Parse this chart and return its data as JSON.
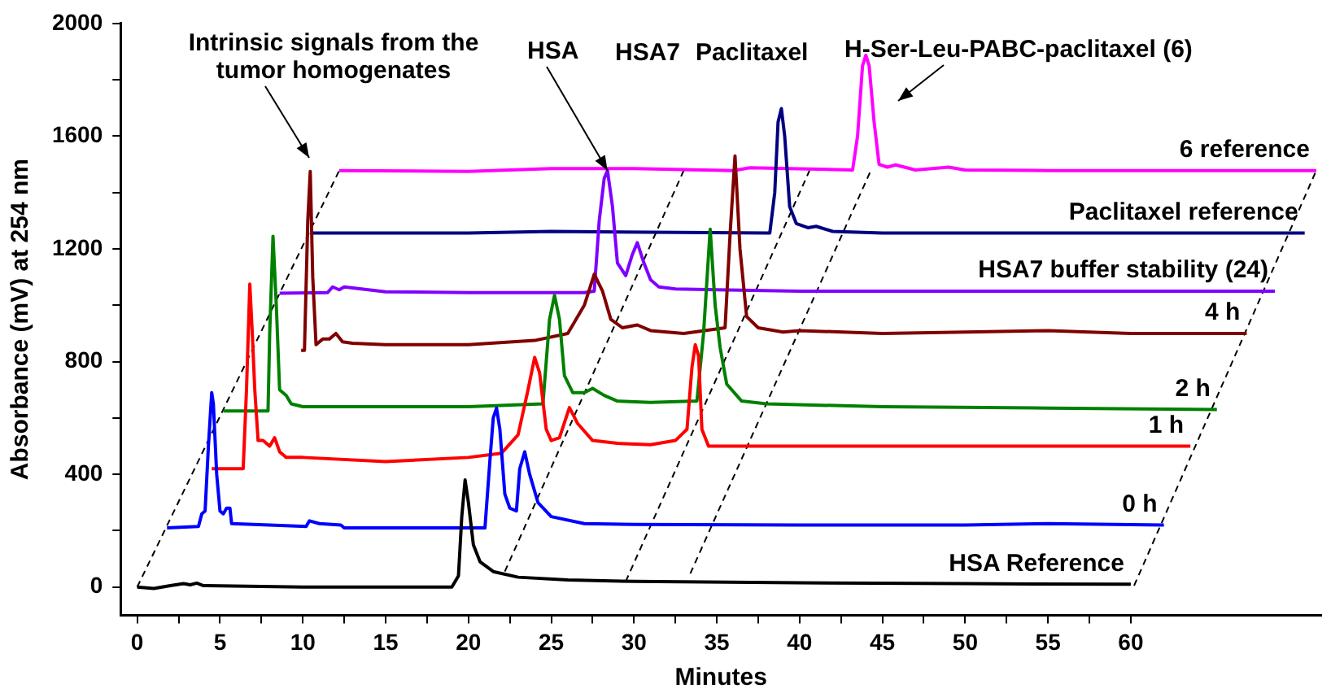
{
  "chart_data": {
    "type": "line",
    "xlabel": "Minutes",
    "ylabel": "Absorbance (mV) at 254 nm",
    "xlim": [
      -1,
      71.5
    ],
    "ylim": [
      -100,
      2000
    ],
    "xticks": [
      0,
      {
        "value": 2.5,
        "label": null
      },
      5,
      {
        "value": 7.5,
        "label": null
      },
      10,
      {
        "value": 12.5,
        "label": null
      },
      15,
      {
        "value": 17.5,
        "label": null
      },
      20,
      {
        "value": 22.5,
        "label": null
      },
      25,
      {
        "value": 27.5,
        "label": null
      },
      30,
      {
        "value": 32.5,
        "label": null
      },
      35,
      {
        "value": 37.5,
        "label": null
      },
      40,
      {
        "value": 42.5,
        "label": null
      },
      45,
      {
        "value": 47.5,
        "label": null
      },
      50,
      {
        "value": 52.5,
        "label": null
      },
      55,
      {
        "value": 57.5,
        "label": null
      },
      60
    ],
    "yticks": [
      0,
      {
        "value": 200,
        "label": null
      },
      400,
      {
        "value": 600,
        "label": null
      },
      800,
      {
        "value": 1000,
        "label": null
      },
      1200,
      {
        "value": 1400,
        "label": null
      },
      1600,
      {
        "value": 1800,
        "label": null
      },
      2000
    ],
    "grid": false,
    "legend": false,
    "marker": "none",
    "series": [
      {
        "name": "HSA Reference",
        "color": "#000000",
        "x": [
          0,
          1,
          2,
          2.8,
          3.2,
          3.6,
          4,
          10,
          19,
          19.4,
          19.6,
          19.8,
          20.0,
          20.3,
          20.7,
          21.5,
          23,
          26,
          30,
          40,
          50,
          60
        ],
        "values": [
          0,
          -5,
          5,
          12,
          8,
          14,
          5,
          0,
          0,
          40,
          250,
          380,
          300,
          150,
          90,
          55,
          35,
          25,
          20,
          15,
          12,
          10
        ]
      },
      {
        "name": "0 h",
        "color": "#0000ff",
        "x": [
          1.8,
          3.7,
          3.9,
          4.1,
          4.3,
          4.5,
          4.6,
          4.8,
          5.0,
          5.2,
          5.4,
          5.6,
          5.7,
          8,
          10.2,
          10.4,
          11,
          12.3,
          12.5,
          21.0,
          21.3,
          21.5,
          21.7,
          21.9,
          22.2,
          22.5,
          22.9,
          23.1,
          23.4,
          23.7,
          24.2,
          25,
          27,
          30,
          40,
          50,
          55,
          62
        ],
        "values": [
          210,
          215,
          260,
          270,
          500,
          690,
          650,
          400,
          270,
          260,
          280,
          280,
          225,
          220,
          215,
          235,
          225,
          220,
          210,
          210,
          450,
          600,
          635,
          560,
          330,
          280,
          270,
          420,
          480,
          400,
          300,
          250,
          225,
          222,
          220,
          220,
          225,
          220
        ]
      },
      {
        "name": "1 h",
        "color": "#ff0000",
        "x": [
          4.5,
          6.4,
          6.6,
          6.8,
          6.95,
          7.1,
          7.3,
          7.6,
          8,
          8.3,
          8.6,
          9,
          10,
          15,
          20,
          22,
          23,
          23.6,
          24.0,
          24.3,
          24.7,
          25,
          25.5,
          26.1,
          26.6,
          27.5,
          29,
          31,
          32.5,
          33.2,
          33.5,
          33.7,
          33.9,
          34.1,
          34.5,
          36,
          40,
          50,
          63.6
        ],
        "values": [
          420,
          420,
          700,
          1075,
          900,
          700,
          520,
          520,
          500,
          530,
          480,
          460,
          460,
          445,
          460,
          475,
          540,
          700,
          815,
          760,
          560,
          520,
          530,
          637,
          580,
          520,
          510,
          505,
          520,
          560,
          780,
          860,
          820,
          560,
          500,
          500,
          500,
          500,
          500
        ]
      },
      {
        "name": "2 h",
        "color": "#008000",
        "x": [
          5.2,
          7.9,
          8.0,
          8.2,
          8.4,
          8.6,
          9,
          9.3,
          10,
          15,
          20,
          24.5,
          24.9,
          25.2,
          25.5,
          25.8,
          26.3,
          27,
          27.5,
          28.2,
          29,
          31,
          33.8,
          34.2,
          34.6,
          34.9,
          35.2,
          35.6,
          36.5,
          38,
          45,
          55,
          65.2
        ],
        "values": [
          625,
          625,
          900,
          1245,
          1000,
          700,
          680,
          650,
          640,
          640,
          640,
          650,
          950,
          1035,
          950,
          750,
          690,
          690,
          705,
          680,
          660,
          655,
          660,
          900,
          1270,
          1000,
          850,
          720,
          660,
          650,
          640,
          635,
          630
        ]
      },
      {
        "name": "4 h",
        "color": "#800000",
        "x": [
          9.9,
          10.1,
          10.3,
          10.45,
          10.6,
          10.8,
          11.2,
          11.6,
          12.0,
          12.4,
          13,
          15,
          20,
          24,
          26,
          27.0,
          27.6,
          28.1,
          28.6,
          29.3,
          30.2,
          31,
          33,
          35.5,
          35.8,
          36.1,
          36.4,
          36.8,
          37.5,
          39,
          40,
          45,
          50,
          55,
          60,
          67
        ],
        "values": [
          840,
          840,
          1300,
          1475,
          1100,
          860,
          880,
          880,
          900,
          870,
          865,
          860,
          860,
          875,
          900,
          1000,
          1110,
          1050,
          950,
          920,
          930,
          910,
          900,
          920,
          1250,
          1530,
          1200,
          960,
          920,
          905,
          910,
          900,
          905,
          910,
          900,
          900
        ]
      },
      {
        "name": "HSA7 buffer stability (24)",
        "color": "#8000ff",
        "x": [
          8.6,
          11.5,
          11.8,
          12.2,
          12.5,
          15,
          20,
          27,
          27.6,
          27.9,
          28.2,
          28.4,
          28.7,
          29.0,
          29.5,
          29.9,
          30.2,
          30.6,
          31.0,
          31.5,
          32.5,
          35,
          40,
          50,
          68.7
        ],
        "values": [
          1043,
          1045,
          1065,
          1055,
          1065,
          1048,
          1045,
          1045,
          1050,
          1300,
          1450,
          1478,
          1350,
          1150,
          1105,
          1180,
          1222,
          1150,
          1090,
          1065,
          1058,
          1055,
          1050,
          1050,
          1050
        ]
      },
      {
        "name": "Paclitaxel reference",
        "color": "#000080",
        "x": [
          10.5,
          20,
          25,
          38.2,
          38.5,
          38.7,
          38.9,
          39.1,
          39.4,
          39.8,
          40.5,
          41,
          42,
          45,
          55,
          70.5
        ],
        "values": [
          1256,
          1256,
          1262,
          1256,
          1400,
          1650,
          1698,
          1600,
          1350,
          1290,
          1275,
          1280,
          1262,
          1256,
          1256,
          1256
        ]
      },
      {
        "name": "6 reference",
        "color": "#ff00ff",
        "x": [
          12.2,
          20,
          25,
          30,
          36,
          37,
          43.2,
          43.5,
          43.8,
          44.0,
          44.2,
          44.5,
          44.8,
          45.3,
          45.8,
          47,
          49,
          50,
          55,
          71.2
        ],
        "values": [
          1478,
          1475,
          1485,
          1485,
          1478,
          1488,
          1480,
          1600,
          1850,
          1887,
          1850,
          1650,
          1500,
          1490,
          1498,
          1480,
          1490,
          1480,
          1478,
          1478
        ]
      },
      {
        "color": "#000000",
        "line_style": "dashed",
        "x": [
          0,
          12.2
        ],
        "values": [
          0,
          1478
        ]
      },
      {
        "color": "#000000",
        "line_style": "dashed",
        "x": [
          22.2,
          33.0
        ],
        "values": [
          55,
          1478
        ]
      },
      {
        "color": "#000000",
        "line_style": "dashed",
        "x": [
          29.5,
          40.6
        ],
        "values": [
          20,
          1478
        ]
      },
      {
        "color": "#000000",
        "line_style": "dashed",
        "x": [
          33.4,
          44.3
        ],
        "values": [
          48,
          1478
        ]
      },
      {
        "color": "#000000",
        "line_style": "dashed",
        "x": [
          60.2,
          71.2
        ],
        "values": [
          5,
          1478
        ]
      }
    ],
    "annotations": [
      "Intrinsic signals from the tumor homogenates",
      {
        "text": "HSA",
        "x": 28.4,
        "y": 1478
      },
      "HSA7",
      "Paclitaxel",
      "H-Ser-Leu-PABC-paclitaxel (6)"
    ]
  }
}
